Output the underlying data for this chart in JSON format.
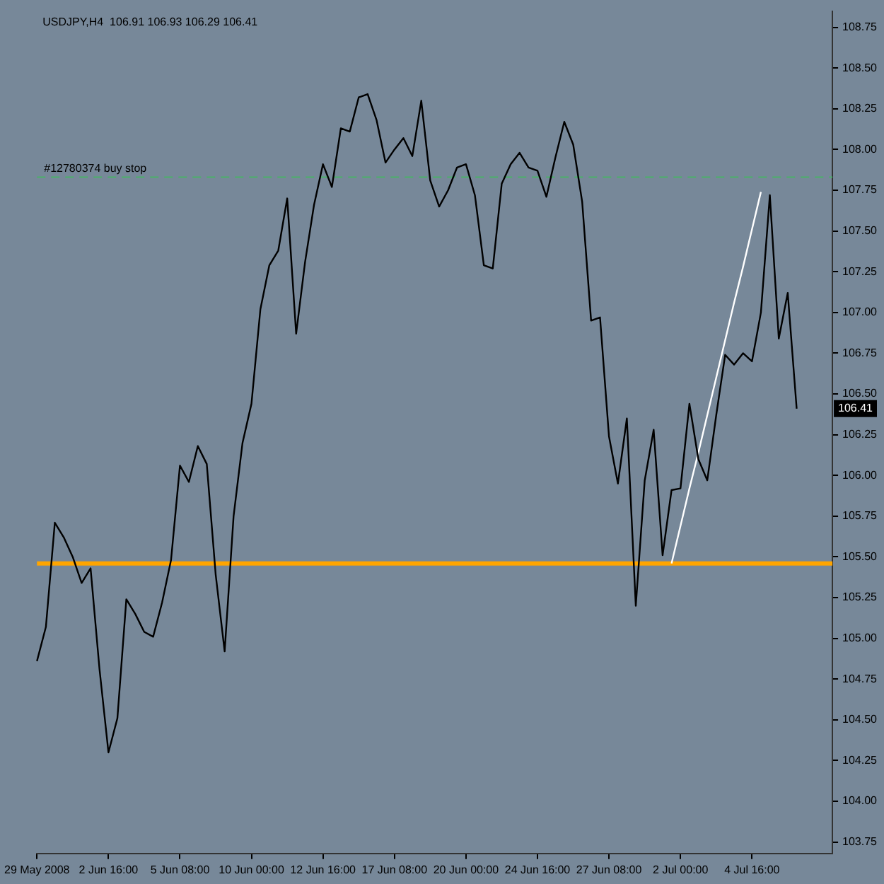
{
  "chart_data": {
    "type": "line",
    "title": "USDJPY,H4  106.91 106.93 106.29 106.41",
    "categories": [
      "29 May 2008",
      null,
      null,
      null,
      null,
      null,
      null,
      null,
      "2 Jun 16:00",
      null,
      null,
      null,
      null,
      null,
      null,
      null,
      "5 Jun 08:00",
      null,
      null,
      null,
      null,
      null,
      null,
      null,
      "10 Jun 00:00",
      null,
      null,
      null,
      null,
      null,
      null,
      null,
      "12 Jun 16:00",
      null,
      null,
      null,
      null,
      null,
      null,
      null,
      "17 Jun 08:00",
      null,
      null,
      null,
      null,
      null,
      null,
      null,
      "20 Jun 00:00",
      null,
      null,
      null,
      null,
      null,
      null,
      null,
      "24 Jun 16:00",
      null,
      null,
      null,
      null,
      null,
      null,
      null,
      "27 Jun 08:00",
      null,
      null,
      null,
      null,
      null,
      null,
      null,
      "2 Jul 00:00",
      null,
      null,
      null,
      null,
      null,
      null,
      null,
      "4 Jul 16:00",
      null,
      null,
      null,
      null,
      null,
      null,
      null,
      null,
      null
    ],
    "series": [
      {
        "color": "#000000",
        "values": [
          104.86,
          105.07,
          105.71,
          105.62,
          105.5,
          105.34,
          105.43,
          104.81,
          104.3,
          104.51,
          105.24,
          105.15,
          105.04,
          105.01,
          105.22,
          105.48,
          106.06,
          105.96,
          106.18,
          106.07,
          105.39,
          104.92,
          105.75,
          106.2,
          106.44,
          107.02,
          107.29,
          107.38,
          107.7,
          106.87,
          107.31,
          107.66,
          107.91,
          107.77,
          108.13,
          108.11,
          108.32,
          108.34,
          108.18,
          107.92,
          108.0,
          108.07,
          107.96,
          108.3,
          107.81,
          107.65,
          107.75,
          107.89,
          107.91,
          107.72,
          107.29,
          107.27,
          107.79,
          107.91,
          107.98,
          107.89,
          107.87,
          107.71,
          107.95,
          108.17,
          108.03,
          107.68,
          106.95,
          106.97,
          106.24,
          105.95,
          106.35,
          105.2,
          105.97,
          106.28,
          105.51,
          105.91,
          105.92,
          106.44,
          106.1,
          105.97,
          106.37,
          106.74,
          106.68,
          106.75,
          106.7,
          107.0,
          107.72,
          106.84,
          107.12,
          106.41,
          null,
          null,
          null,
          null
        ]
      },
      {
        "type": "line",
        "color": "#ffffff",
        "values": [
          null,
          null,
          null,
          null,
          null,
          null,
          null,
          null,
          null,
          null,
          null,
          null,
          null,
          null,
          null,
          null,
          null,
          null,
          null,
          null,
          null,
          null,
          null,
          null,
          null,
          null,
          null,
          null,
          null,
          null,
          null,
          null,
          null,
          null,
          null,
          null,
          null,
          null,
          null,
          null,
          null,
          null,
          null,
          null,
          null,
          null,
          null,
          null,
          null,
          null,
          null,
          null,
          null,
          null,
          null,
          null,
          null,
          null,
          null,
          null,
          null,
          null,
          null,
          null,
          null,
          null,
          null,
          null,
          null,
          null,
          null,
          105.46,
          105.69,
          105.92,
          106.14,
          106.37,
          106.6,
          106.83,
          107.06,
          107.28,
          107.51,
          107.74,
          null,
          null,
          null,
          null,
          null,
          null,
          null,
          null
        ]
      }
    ],
    "ylim": [
      103.68,
      108.85
    ],
    "yticks": [
      {
        "value": 103.75
      },
      {
        "value": 104,
        "label": "104.00"
      },
      104.25,
      {
        "value": 104.5,
        "label": "104.50"
      },
      104.75,
      {
        "value": 105,
        "label": "105.00"
      },
      105.25,
      {
        "value": 105.5,
        "label": "105.50"
      },
      105.75,
      {
        "value": 106,
        "label": "106.00"
      },
      106.25,
      {
        "value": 106.5,
        "label": "106.50"
      },
      106.75,
      {
        "value": 107,
        "label": "107.00"
      },
      107.25,
      {
        "value": 107.5,
        "label": "107.50"
      },
      107.75,
      {
        "value": 108,
        "label": "108.00"
      },
      108.25,
      {
        "value": 108.5,
        "label": "108.50"
      },
      108.75
    ],
    "ref_lines": [
      {
        "axis": "y",
        "value": 105.46,
        "color": "#ffa500",
        "line_style": "solid"
      },
      {
        "axis": "y",
        "value": 107.83,
        "label": "#12780374 buy stop",
        "color": "#4caf6a",
        "line_style": "dashed"
      }
    ],
    "annotations": [
      {
        "text": "106.41",
        "y": 106.41
      }
    ],
    "grid": false,
    "legend": false
  }
}
